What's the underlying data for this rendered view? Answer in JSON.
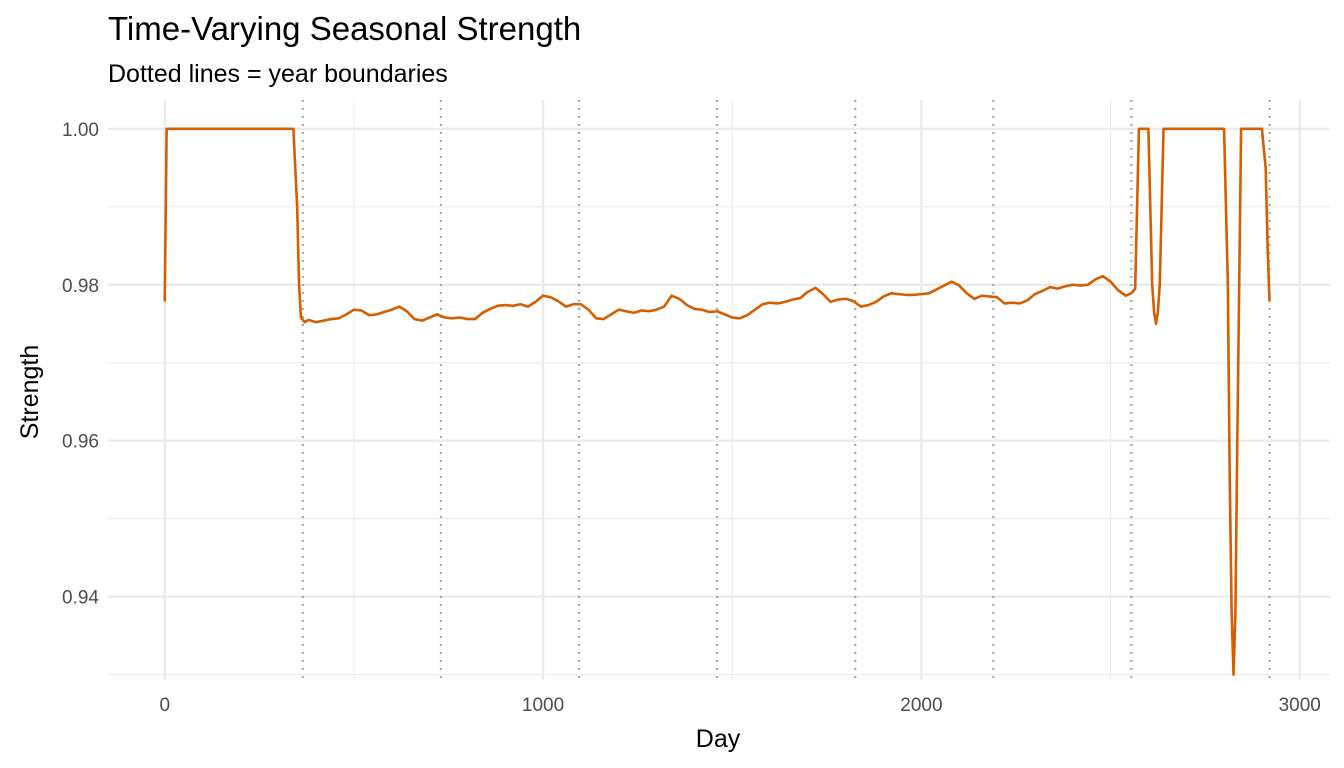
{
  "chart_data": {
    "type": "line",
    "title": "Time-Varying Seasonal Strength",
    "subtitle": "Dotted lines = year boundaries",
    "xlabel": "Day",
    "ylabel": "Strength",
    "xlim": [
      -150,
      3080
    ],
    "ylim": [
      0.9293,
      1.0037
    ],
    "x_ticks": [
      0,
      1000,
      2000,
      3000
    ],
    "x_tick_labels": [
      "0",
      "1000",
      "2000",
      "3000"
    ],
    "y_ticks": [
      0.94,
      0.96,
      0.98,
      1.0
    ],
    "y_tick_labels": [
      "0.94",
      "0.96",
      "0.98",
      "1.00"
    ],
    "grid": true,
    "line_color": "#d55e00",
    "vline_color": "#a6a6a6",
    "year_boundaries": [
      365,
      730,
      1095,
      1460,
      1825,
      2190,
      2555,
      2920
    ],
    "series": [
      {
        "x": [
          0,
          5,
          10,
          60,
          120,
          180,
          240,
          300,
          340,
          350,
          355,
          360,
          370,
          380,
          400,
          420,
          440,
          460,
          480,
          500,
          520,
          540,
          560,
          580,
          600,
          620,
          640,
          660,
          680,
          700,
          720,
          740,
          760,
          780,
          800,
          820,
          840,
          860,
          880,
          900,
          920,
          940,
          960,
          980,
          1000,
          1020,
          1040,
          1060,
          1080,
          1100,
          1120,
          1140,
          1160,
          1180,
          1200,
          1220,
          1240,
          1260,
          1280,
          1300,
          1320,
          1340,
          1360,
          1380,
          1400,
          1420,
          1440,
          1460,
          1480,
          1500,
          1520,
          1540,
          1560,
          1580,
          1600,
          1620,
          1640,
          1660,
          1680,
          1700,
          1720,
          1740,
          1760,
          1780,
          1800,
          1820,
          1840,
          1860,
          1880,
          1900,
          1920,
          1940,
          1960,
          1980,
          2000,
          2020,
          2040,
          2060,
          2080,
          2100,
          2120,
          2140,
          2160,
          2180,
          2200,
          2220,
          2240,
          2260,
          2280,
          2300,
          2320,
          2340,
          2360,
          2380,
          2400,
          2420,
          2440,
          2460,
          2480,
          2500,
          2520,
          2540,
          2555,
          2565,
          2575,
          2590,
          2600,
          2605,
          2610,
          2615,
          2620,
          2625,
          2630,
          2640,
          2650,
          2700,
          2760,
          2800,
          2810,
          2815,
          2820,
          2825,
          2830,
          2835,
          2840,
          2845,
          2850,
          2880,
          2900,
          2910,
          2915,
          2920
        ],
        "y": [
          0.978,
          1.0,
          1.0,
          1.0,
          1.0,
          1.0,
          1.0,
          1.0,
          1.0,
          0.99,
          0.98,
          0.9758,
          0.9752,
          0.9755,
          0.9752,
          0.9754,
          0.9756,
          0.9757,
          0.9762,
          0.9768,
          0.9767,
          0.9761,
          0.9762,
          0.9765,
          0.9768,
          0.9772,
          0.9766,
          0.9756,
          0.9754,
          0.9758,
          0.9762,
          0.9758,
          0.9757,
          0.9758,
          0.9756,
          0.9756,
          0.9764,
          0.9769,
          0.9773,
          0.9774,
          0.9773,
          0.9775,
          0.9772,
          0.9778,
          0.9786,
          0.9784,
          0.9779,
          0.9772,
          0.9775,
          0.9775,
          0.9768,
          0.9757,
          0.9756,
          0.9762,
          0.9768,
          0.9766,
          0.9764,
          0.9767,
          0.9766,
          0.9768,
          0.9772,
          0.9786,
          0.9782,
          0.9774,
          0.9769,
          0.9768,
          0.9765,
          0.9766,
          0.9762,
          0.9758,
          0.9757,
          0.9761,
          0.9768,
          0.9775,
          0.9777,
          0.9776,
          0.9778,
          0.9781,
          0.9783,
          0.9791,
          0.9796,
          0.9788,
          0.9778,
          0.9781,
          0.9782,
          0.9779,
          0.9772,
          0.9774,
          0.9778,
          0.9785,
          0.9789,
          0.9788,
          0.9787,
          0.9787,
          0.9788,
          0.9789,
          0.9794,
          0.9799,
          0.9804,
          0.9799,
          0.9789,
          0.9782,
          0.9786,
          0.9785,
          0.9784,
          0.9776,
          0.9777,
          0.9776,
          0.978,
          0.9788,
          0.9792,
          0.9797,
          0.9795,
          0.9798,
          0.98,
          0.9799,
          0.98,
          0.9807,
          0.9811,
          0.9804,
          0.9793,
          0.9786,
          0.9789,
          0.9795,
          1.0,
          1.0,
          1.0,
          0.99,
          0.98,
          0.9765,
          0.975,
          0.9765,
          0.98,
          1.0,
          1.0,
          1.0,
          1.0,
          1.0,
          0.98,
          0.955,
          0.938,
          0.93,
          0.938,
          0.96,
          0.98,
          1.0,
          1.0,
          1.0,
          1.0,
          0.995,
          0.985,
          0.978
        ]
      }
    ]
  }
}
